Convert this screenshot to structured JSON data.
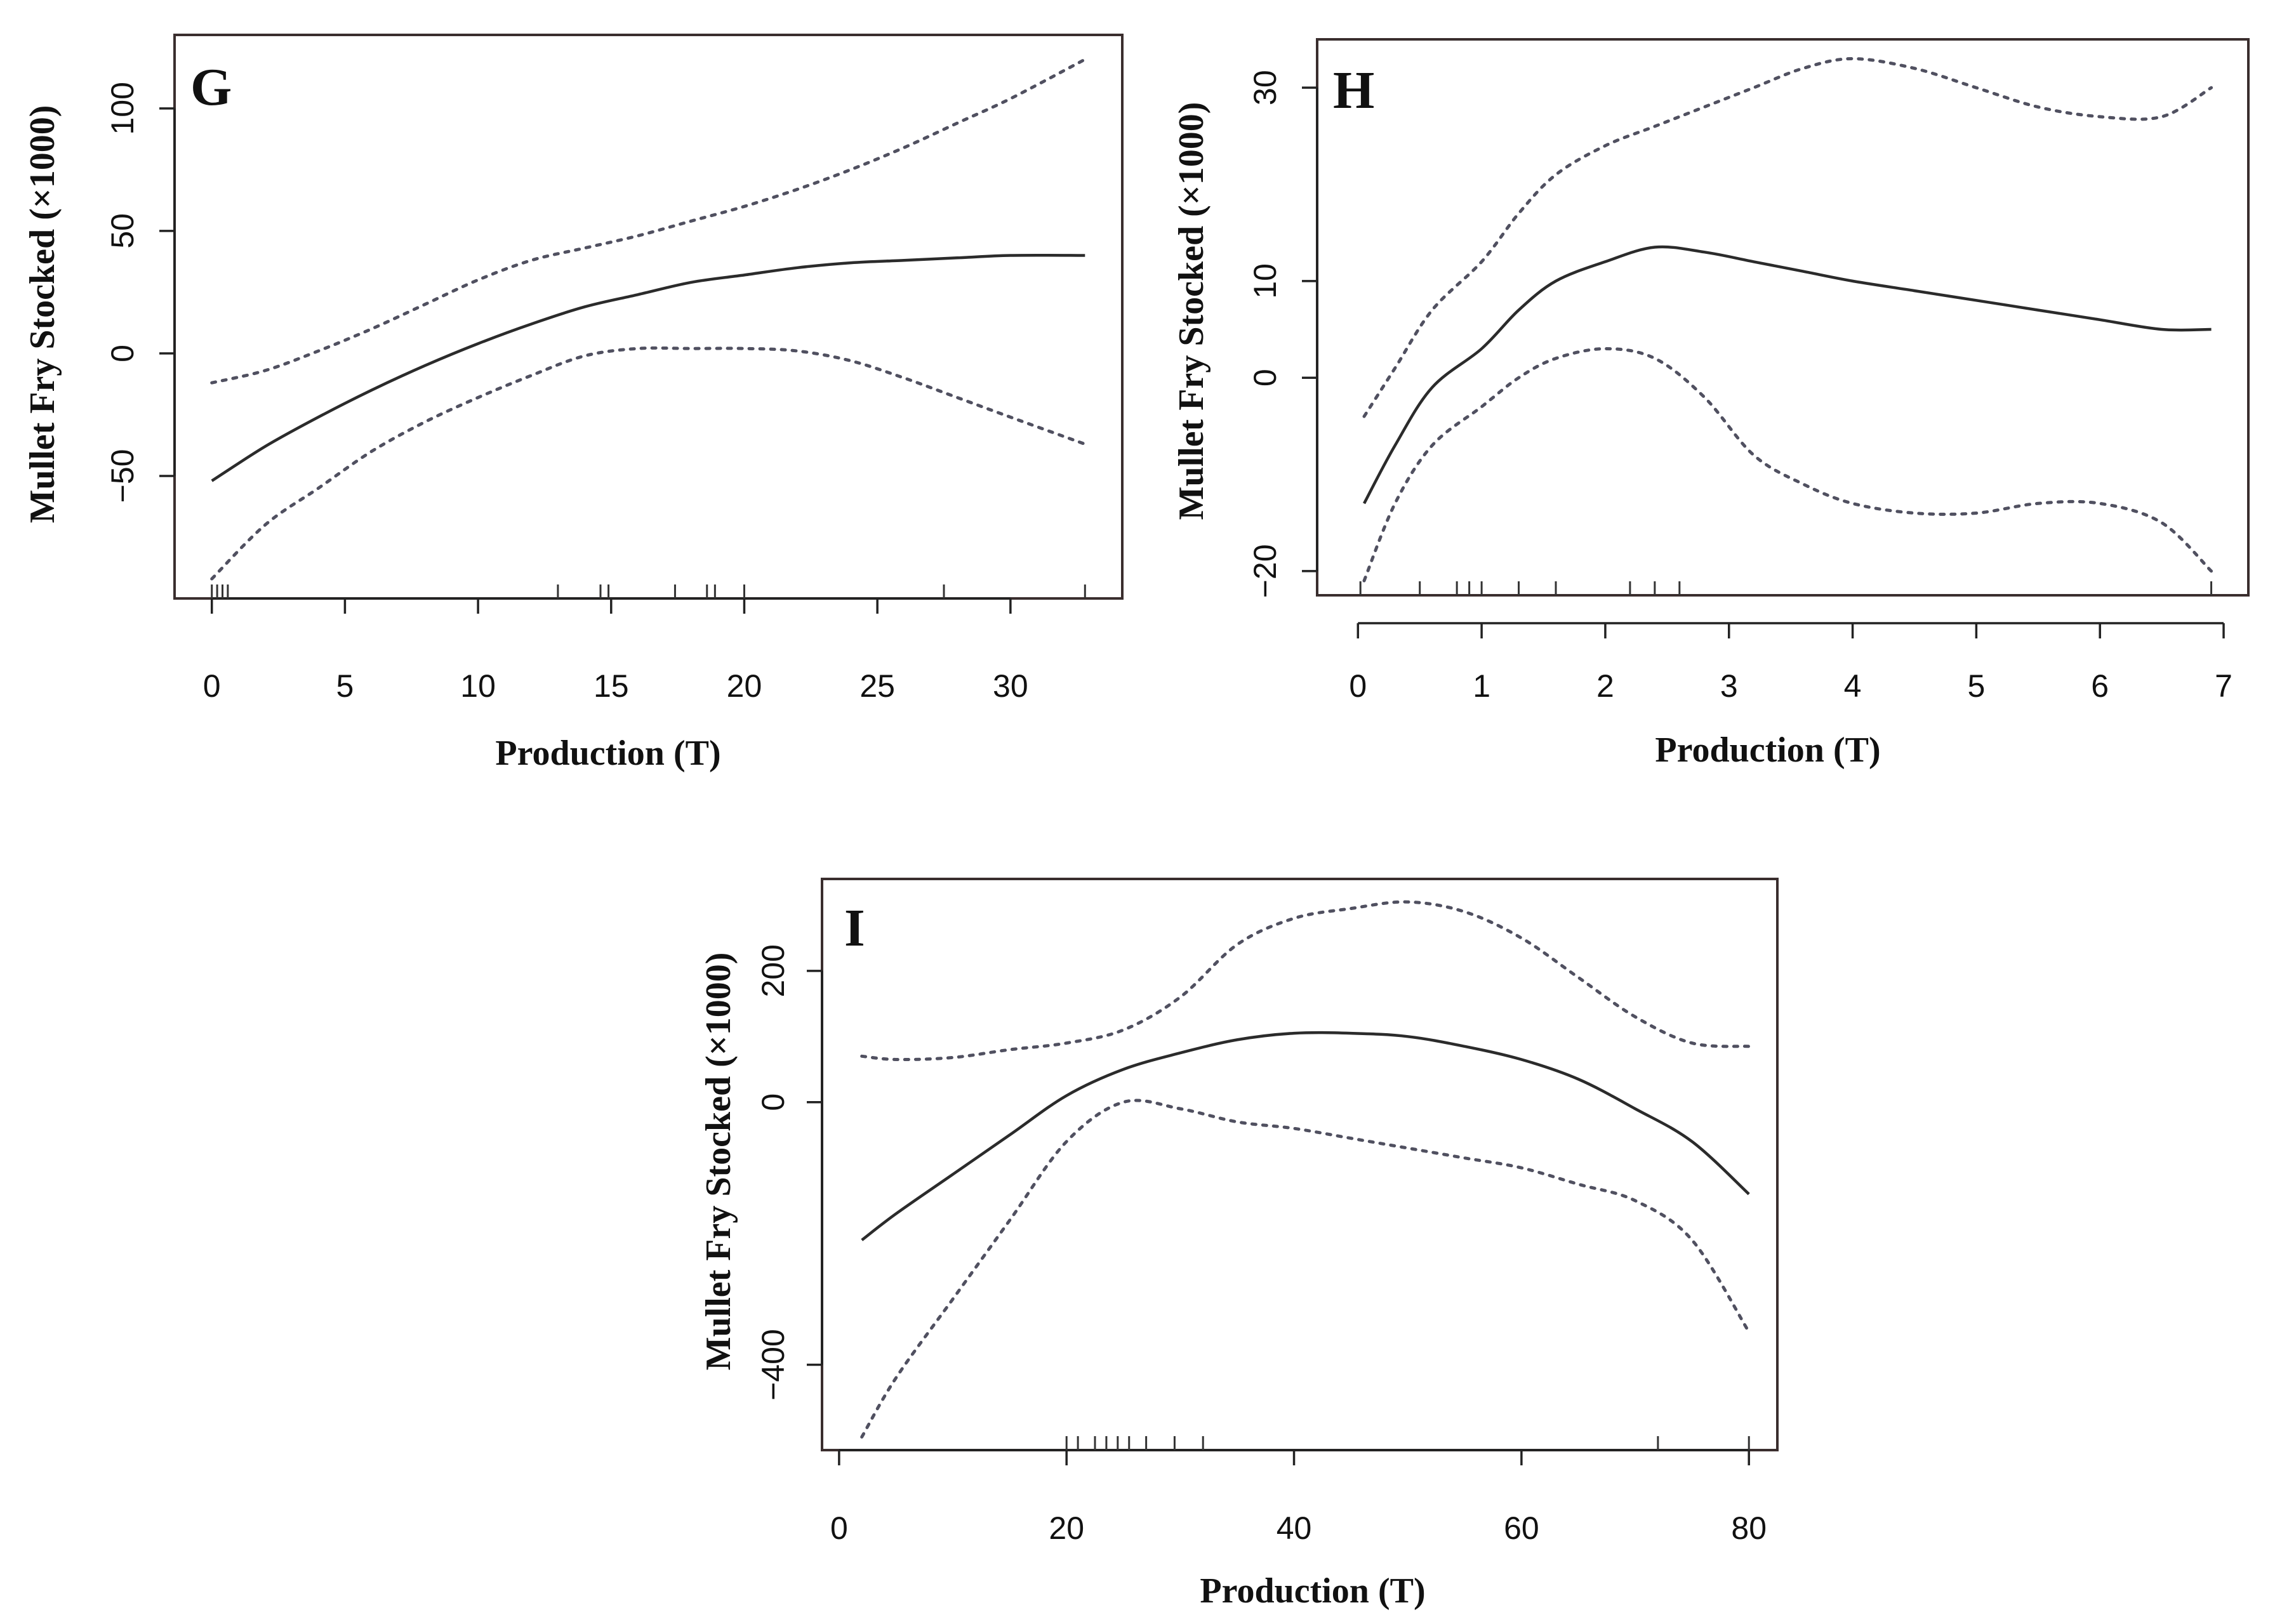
{
  "chart_data": [
    {
      "id": "G",
      "type": "line",
      "panel_label": "G",
      "xlabel": "Production (T)",
      "ylabel": "Mullet Fry Stocked (×1000)",
      "xlim": [
        -1.4,
        34.2
      ],
      "ylim": [
        -100,
        130
      ],
      "xticks": [
        0,
        5,
        10,
        15,
        20,
        25,
        30
      ],
      "yticks": [
        -50,
        0,
        50,
        100
      ],
      "rug": [
        0,
        0.2,
        0.4,
        0.6,
        13,
        14.6,
        14.9,
        17.4,
        18.6,
        18.9,
        20,
        27.5,
        32.8
      ],
      "x": [
        0,
        2,
        4,
        6,
        8,
        10,
        12,
        14,
        16,
        18,
        20,
        22,
        24,
        26,
        28,
        30,
        32.8
      ],
      "series": [
        {
          "name": "fit",
          "style": "solid",
          "values": [
            -52,
            -38,
            -26,
            -15,
            -5,
            4,
            12,
            19,
            24,
            29,
            32,
            35,
            37,
            38,
            39,
            40,
            40
          ]
        },
        {
          "name": "upper",
          "style": "dotted",
          "values": [
            -12,
            -7,
            1,
            10,
            20,
            30,
            38,
            43,
            48,
            54,
            60,
            67,
            75,
            84,
            94,
            104,
            120
          ]
        },
        {
          "name": "lower",
          "style": "dotted",
          "values": [
            -92,
            -70,
            -55,
            -40,
            -28,
            -18,
            -9,
            -1,
            2,
            2,
            2,
            1,
            -3,
            -10,
            -18,
            -26,
            -37
          ]
        }
      ]
    },
    {
      "id": "H",
      "type": "line",
      "panel_label": "H",
      "xlabel": "Production (T)",
      "ylabel": "Mullet Fry Stocked (×1000)",
      "xlim": [
        -0.33,
        7.2
      ],
      "ylim": [
        -22.5,
        35
      ],
      "xticks": [
        0,
        1,
        2,
        3,
        4,
        5,
        6,
        7
      ],
      "yticks": [
        -20,
        0,
        10,
        30
      ],
      "rug": [
        0.02,
        0.5,
        0.8,
        0.9,
        1.0,
        1.3,
        1.6,
        2.2,
        2.4,
        2.6,
        6.9
      ],
      "x": [
        0.05,
        0.3,
        0.6,
        1.0,
        1.3,
        1.6,
        2.0,
        2.4,
        2.8,
        3.2,
        3.6,
        4.0,
        4.5,
        5.0,
        5.5,
        6.0,
        6.5,
        6.9
      ],
      "series": [
        {
          "name": "fit",
          "style": "solid",
          "values": [
            -13,
            -7,
            -1,
            3,
            7,
            10,
            12,
            13.5,
            13,
            12,
            11,
            10,
            9,
            8,
            7,
            6,
            5,
            5
          ]
        },
        {
          "name": "upper",
          "style": "dotted",
          "values": [
            -4,
            1,
            7,
            12,
            17,
            21,
            24,
            26,
            28,
            30,
            32,
            33,
            32,
            30,
            28,
            27,
            27,
            30
          ]
        },
        {
          "name": "lower",
          "style": "dotted",
          "values": [
            -21,
            -13,
            -7,
            -3,
            0,
            2,
            3,
            2,
            -2,
            -8,
            -11,
            -13,
            -14,
            -14,
            -13,
            -13,
            -15,
            -20
          ]
        }
      ]
    },
    {
      "id": "I",
      "type": "line",
      "panel_label": "I",
      "xlabel": "Production (T)",
      "ylabel": "Mullet Fry Stocked (×1000)",
      "xlim": [
        -1.5,
        82.5
      ],
      "ylim": [
        -530,
        340
      ],
      "xticks": [
        0,
        20,
        40,
        60,
        80
      ],
      "yticks": [
        -400,
        0,
        200
      ],
      "rug": [
        20,
        21,
        22.5,
        23.5,
        24.5,
        25.5,
        27,
        29.5,
        32,
        72,
        80
      ],
      "x": [
        2,
        5,
        10,
        15,
        20,
        25,
        30,
        35,
        40,
        45,
        50,
        55,
        60,
        65,
        70,
        75,
        80
      ],
      "series": [
        {
          "name": "fit",
          "style": "solid",
          "values": [
            -210,
            -170,
            -110,
            -50,
            10,
            50,
            75,
            95,
            105,
            105,
            100,
            85,
            65,
            35,
            -10,
            -60,
            -140
          ]
        },
        {
          "name": "upper",
          "style": "dotted",
          "values": [
            70,
            65,
            68,
            80,
            90,
            110,
            160,
            240,
            280,
            295,
            305,
            290,
            250,
            190,
            130,
            90,
            85
          ]
        },
        {
          "name": "lower",
          "style": "dotted",
          "values": [
            -510,
            -420,
            -300,
            -180,
            -60,
            0,
            -10,
            -30,
            -40,
            -55,
            -70,
            -85,
            -100,
            -125,
            -150,
            -210,
            -350
          ]
        }
      ]
    }
  ]
}
